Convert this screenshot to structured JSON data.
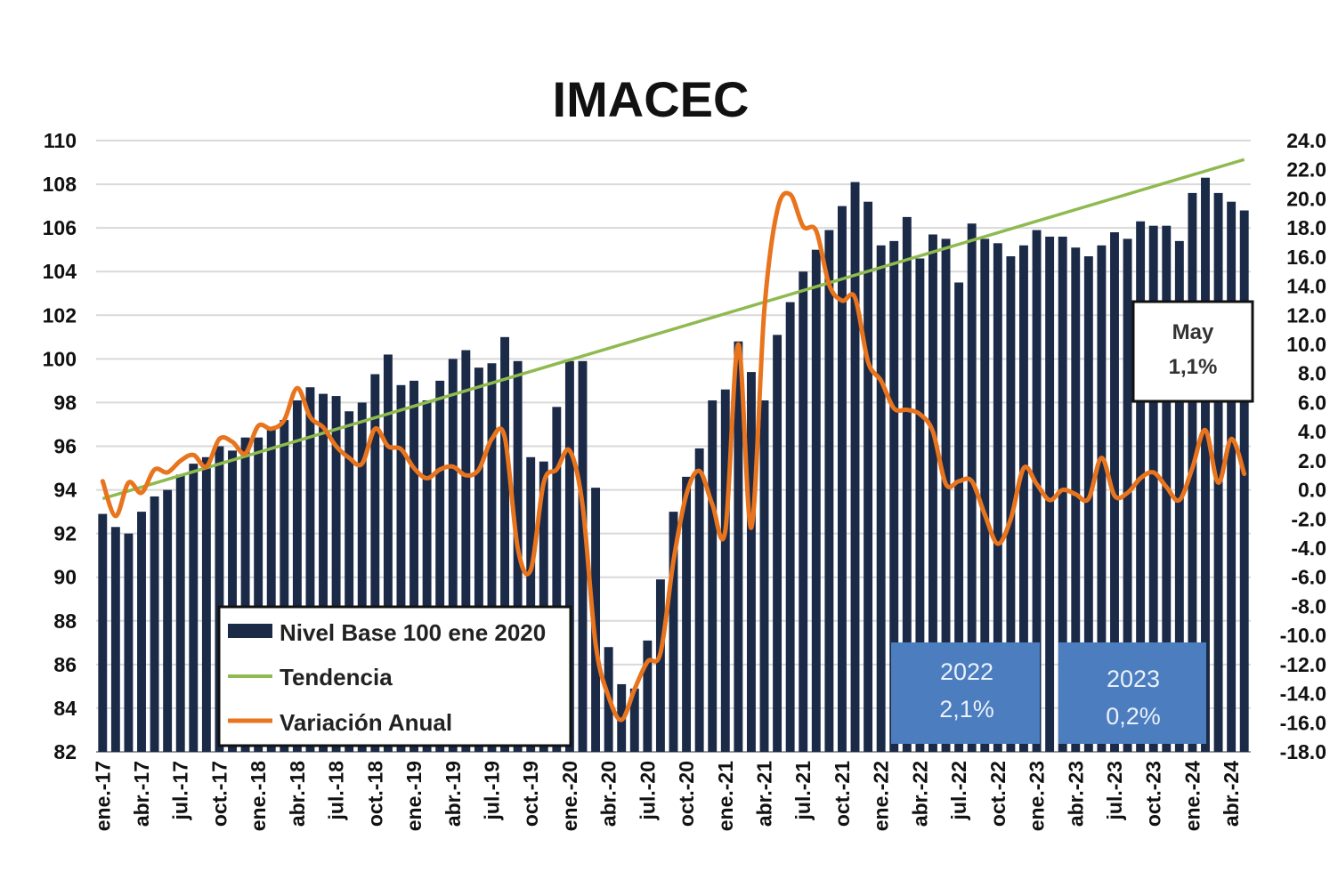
{
  "chart_data": {
    "type": "bar",
    "title": "IMACEC",
    "left_axis": {
      "min": 82,
      "max": 110,
      "ticks": [
        "110",
        "108",
        "106",
        "104",
        "102",
        "100",
        "98",
        "96",
        "94",
        "92",
        "90",
        "88",
        "86",
        "84",
        "82"
      ]
    },
    "right_axis": {
      "min": -18,
      "max": 24,
      "ticks": [
        "24.0",
        "22.0",
        "20.0",
        "18.0",
        "16.0",
        "14.0",
        "12.0",
        "10.0",
        "8.0",
        "6.0",
        "4.0",
        "2.0",
        "0.0",
        "-2.0",
        "-4.0",
        "-6.0",
        "-8.0",
        "-10.0",
        "-12.0",
        "-14.0",
        "-16.0",
        "-18.0"
      ]
    },
    "x_tick_labels": [
      {
        "i": 0,
        "label": "ene.-17"
      },
      {
        "i": 3,
        "label": "abr.-17"
      },
      {
        "i": 6,
        "label": "jul.-17"
      },
      {
        "i": 9,
        "label": "oct.-17"
      },
      {
        "i": 12,
        "label": "ene.-18"
      },
      {
        "i": 15,
        "label": "abr.-18"
      },
      {
        "i": 18,
        "label": "jul.-18"
      },
      {
        "i": 21,
        "label": "oct.-18"
      },
      {
        "i": 24,
        "label": "ene.-19"
      },
      {
        "i": 27,
        "label": "abr.-19"
      },
      {
        "i": 30,
        "label": "jul.-19"
      },
      {
        "i": 33,
        "label": "oct.-19"
      },
      {
        "i": 36,
        "label": "ene.-20"
      },
      {
        "i": 39,
        "label": "abr.-20"
      },
      {
        "i": 42,
        "label": "jul.-20"
      },
      {
        "i": 45,
        "label": "oct.-20"
      },
      {
        "i": 48,
        "label": "ene.-21"
      },
      {
        "i": 51,
        "label": "abr.-21"
      },
      {
        "i": 54,
        "label": "jul.-21"
      },
      {
        "i": 57,
        "label": "oct.-21"
      },
      {
        "i": 60,
        "label": "ene.-22"
      },
      {
        "i": 63,
        "label": "abr.-22"
      },
      {
        "i": 66,
        "label": "jul.-22"
      },
      {
        "i": 69,
        "label": "oct.-22"
      },
      {
        "i": 72,
        "label": "ene.-23"
      },
      {
        "i": 75,
        "label": "abr.-23"
      },
      {
        "i": 78,
        "label": "jul.-23"
      },
      {
        "i": 81,
        "label": "oct.-23"
      },
      {
        "i": 84,
        "label": "ene.-24"
      },
      {
        "i": 87,
        "label": "abr.-24"
      }
    ],
    "series": [
      {
        "name": "Nivel Base 100 ene 2020",
        "type": "bar",
        "axis": "left",
        "color": "#1b2a47",
        "values": [
          92.9,
          92.3,
          92.0,
          93.0,
          93.7,
          94.0,
          94.7,
          95.2,
          95.5,
          96.0,
          95.8,
          96.4,
          96.4,
          96.8,
          97.2,
          98.1,
          98.7,
          98.4,
          98.3,
          97.6,
          98.0,
          99.3,
          100.2,
          98.8,
          99.0,
          98.1,
          99.0,
          100.0,
          100.4,
          99.6,
          99.8,
          101.0,
          99.9,
          95.5,
          95.3,
          97.8,
          99.9,
          99.9,
          94.1,
          86.8,
          85.1,
          84.9,
          87.1,
          89.9,
          93.0,
          94.6,
          95.9,
          98.1,
          98.6,
          100.8,
          99.4,
          98.1,
          101.1,
          102.6,
          104.0,
          105.0,
          105.9,
          107.0,
          108.1,
          107.2,
          105.2,
          105.4,
          106.5,
          104.6,
          105.7,
          105.5,
          103.5,
          106.2,
          105.5,
          105.3,
          104.7,
          105.2,
          105.9,
          105.6,
          105.6,
          105.1,
          104.7,
          105.2,
          105.8,
          105.5,
          106.3,
          106.1,
          106.1,
          105.4,
          107.6,
          108.3,
          107.6,
          107.2,
          106.8
        ]
      },
      {
        "name": "Tendencia",
        "type": "line",
        "axis": "right",
        "color": "#8fba4f",
        "values": [
          -0.6,
          22.7
        ]
      },
      {
        "name": "Variación Anual",
        "type": "line",
        "axis": "right",
        "color": "#e8741e",
        "values": [
          0.6,
          -1.8,
          0.5,
          -0.2,
          1.4,
          1.2,
          2.0,
          2.4,
          1.6,
          3.5,
          3.3,
          2.5,
          4.4,
          4.2,
          4.8,
          7.0,
          5.0,
          4.3,
          3.0,
          2.2,
          1.8,
          4.2,
          3.0,
          2.8,
          1.5,
          0.8,
          1.4,
          1.6,
          1.0,
          1.4,
          3.5,
          3.6,
          -4.0,
          -5.5,
          0.5,
          1.4,
          2.7,
          -1.1,
          -10.6,
          -14.2,
          -15.8,
          -13.7,
          -11.8,
          -11.2,
          -4.9,
          -0.3,
          1.3,
          -1.0,
          -2.8,
          10.0,
          -2.6,
          12.3,
          19.2,
          20.3,
          18.1,
          17.8,
          14.1,
          13.0,
          13.2,
          8.8,
          7.5,
          5.6,
          5.5,
          5.2,
          4.0,
          0.4,
          0.6,
          0.6,
          -1.7,
          -3.7,
          -2.0,
          1.5,
          0.4,
          -0.7,
          0.0,
          -0.3,
          -0.6,
          2.2,
          -0.4,
          -0.2,
          0.8,
          1.2,
          0.2,
          -0.7,
          1.5,
          4.1,
          0.5,
          3.5,
          1.1
        ]
      }
    ],
    "legend": {
      "position": "bottom-left",
      "entries": [
        "Nivel Base 100 ene 2020",
        "Tendencia",
        "Variación Anual"
      ]
    },
    "annotations": [
      {
        "id": "box2022",
        "lines": [
          "2022",
          "2,1%"
        ],
        "fill": "#4b7dbf"
      },
      {
        "id": "box2023",
        "lines": [
          "2023",
          "0,2%"
        ],
        "fill": "#4b7dbf"
      },
      {
        "id": "callout-may",
        "lines": [
          "May",
          "1,1%"
        ],
        "fill": "#ffffff"
      }
    ]
  }
}
